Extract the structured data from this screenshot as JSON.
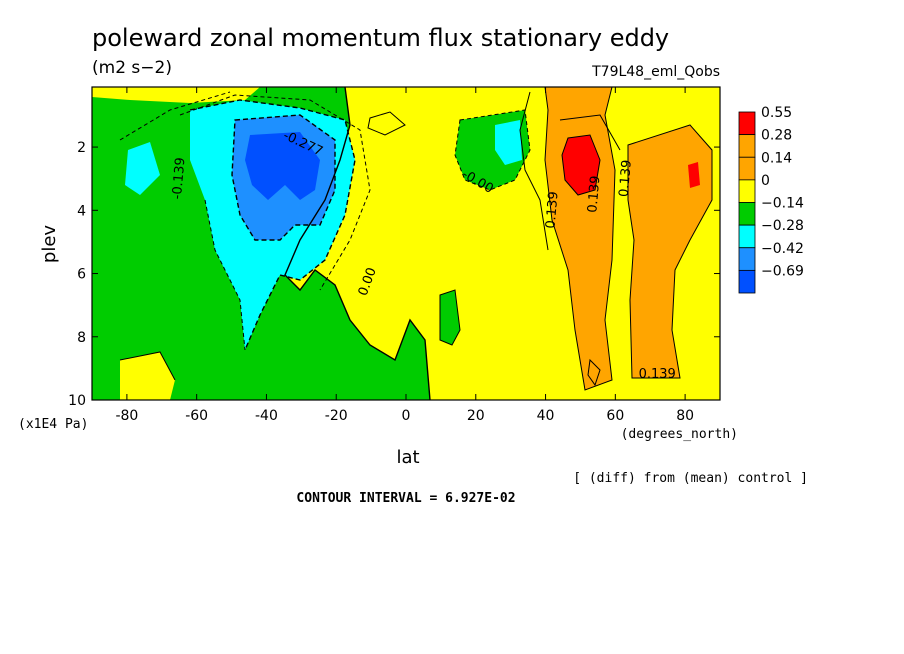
{
  "chart_data": {
    "type": "heatmap",
    "title": "poleward zonal momentum flux stationary eddy",
    "units": "(m2 s−2)",
    "run_label": "T79L48_eml_Qobs",
    "xlabel": "lat",
    "x_units": "(degrees_north)",
    "ylabel": "plev",
    "y_units": "(x1E4 Pa)",
    "xlim": [
      -90,
      90
    ],
    "ylim": [
      10,
      0.1
    ],
    "x_ticks": [
      "-80",
      "-60",
      "-40",
      "-20",
      "0",
      "20",
      "40",
      "60",
      "80"
    ],
    "x_tick_values": [
      -80,
      -60,
      -40,
      -20,
      0,
      20,
      40,
      60,
      80
    ],
    "y_ticks": [
      "2",
      "4",
      "6",
      "8",
      "10"
    ],
    "y_tick_values": [
      2,
      4,
      6,
      8,
      10
    ],
    "colorbar": {
      "labels": [
        "0.55",
        "0.28",
        "0.14",
        "0",
        "−0.14",
        "−0.28",
        "−0.42",
        "−0.69"
      ],
      "colors": [
        "#ff0000",
        "#ffa500",
        "#ffa500",
        "#ffff00",
        "#00cc00",
        "#00ffff",
        "#1e90ff",
        "#0050ff"
      ]
    },
    "contour_labels": [
      {
        "text": "-0.277",
        "lat": -30,
        "plev": 2.0
      },
      {
        "text": "-0.139",
        "lat": -64,
        "plev": 3.0
      },
      {
        "text": "-0.00",
        "lat": 20,
        "plev": 3.2
      },
      {
        "text": "0.00",
        "lat": -10,
        "plev": 6.3
      },
      {
        "text": "0.139",
        "lat": 43,
        "plev": 4.0
      },
      {
        "text": "0.139",
        "lat": 55,
        "plev": 3.5
      },
      {
        "text": "0.139",
        "lat": 64,
        "plev": 3.0
      },
      {
        "text": "0.139",
        "lat": 72,
        "plev": 9.3
      }
    ],
    "features": [
      {
        "name": "southern negative maximum",
        "lat": -38,
        "plev": 2.6,
        "value": -0.69
      },
      {
        "name": "northern positive maximum",
        "lat": 48,
        "plev": 2.6,
        "value": 0.55
      },
      {
        "name": "northern positive maximum 2",
        "lat": 81,
        "plev": 3.0,
        "value": 0.55
      }
    ],
    "footer": "CONTOUR INTERVAL = 6.927E-02",
    "note": "[ (diff) from (mean) control ]"
  }
}
